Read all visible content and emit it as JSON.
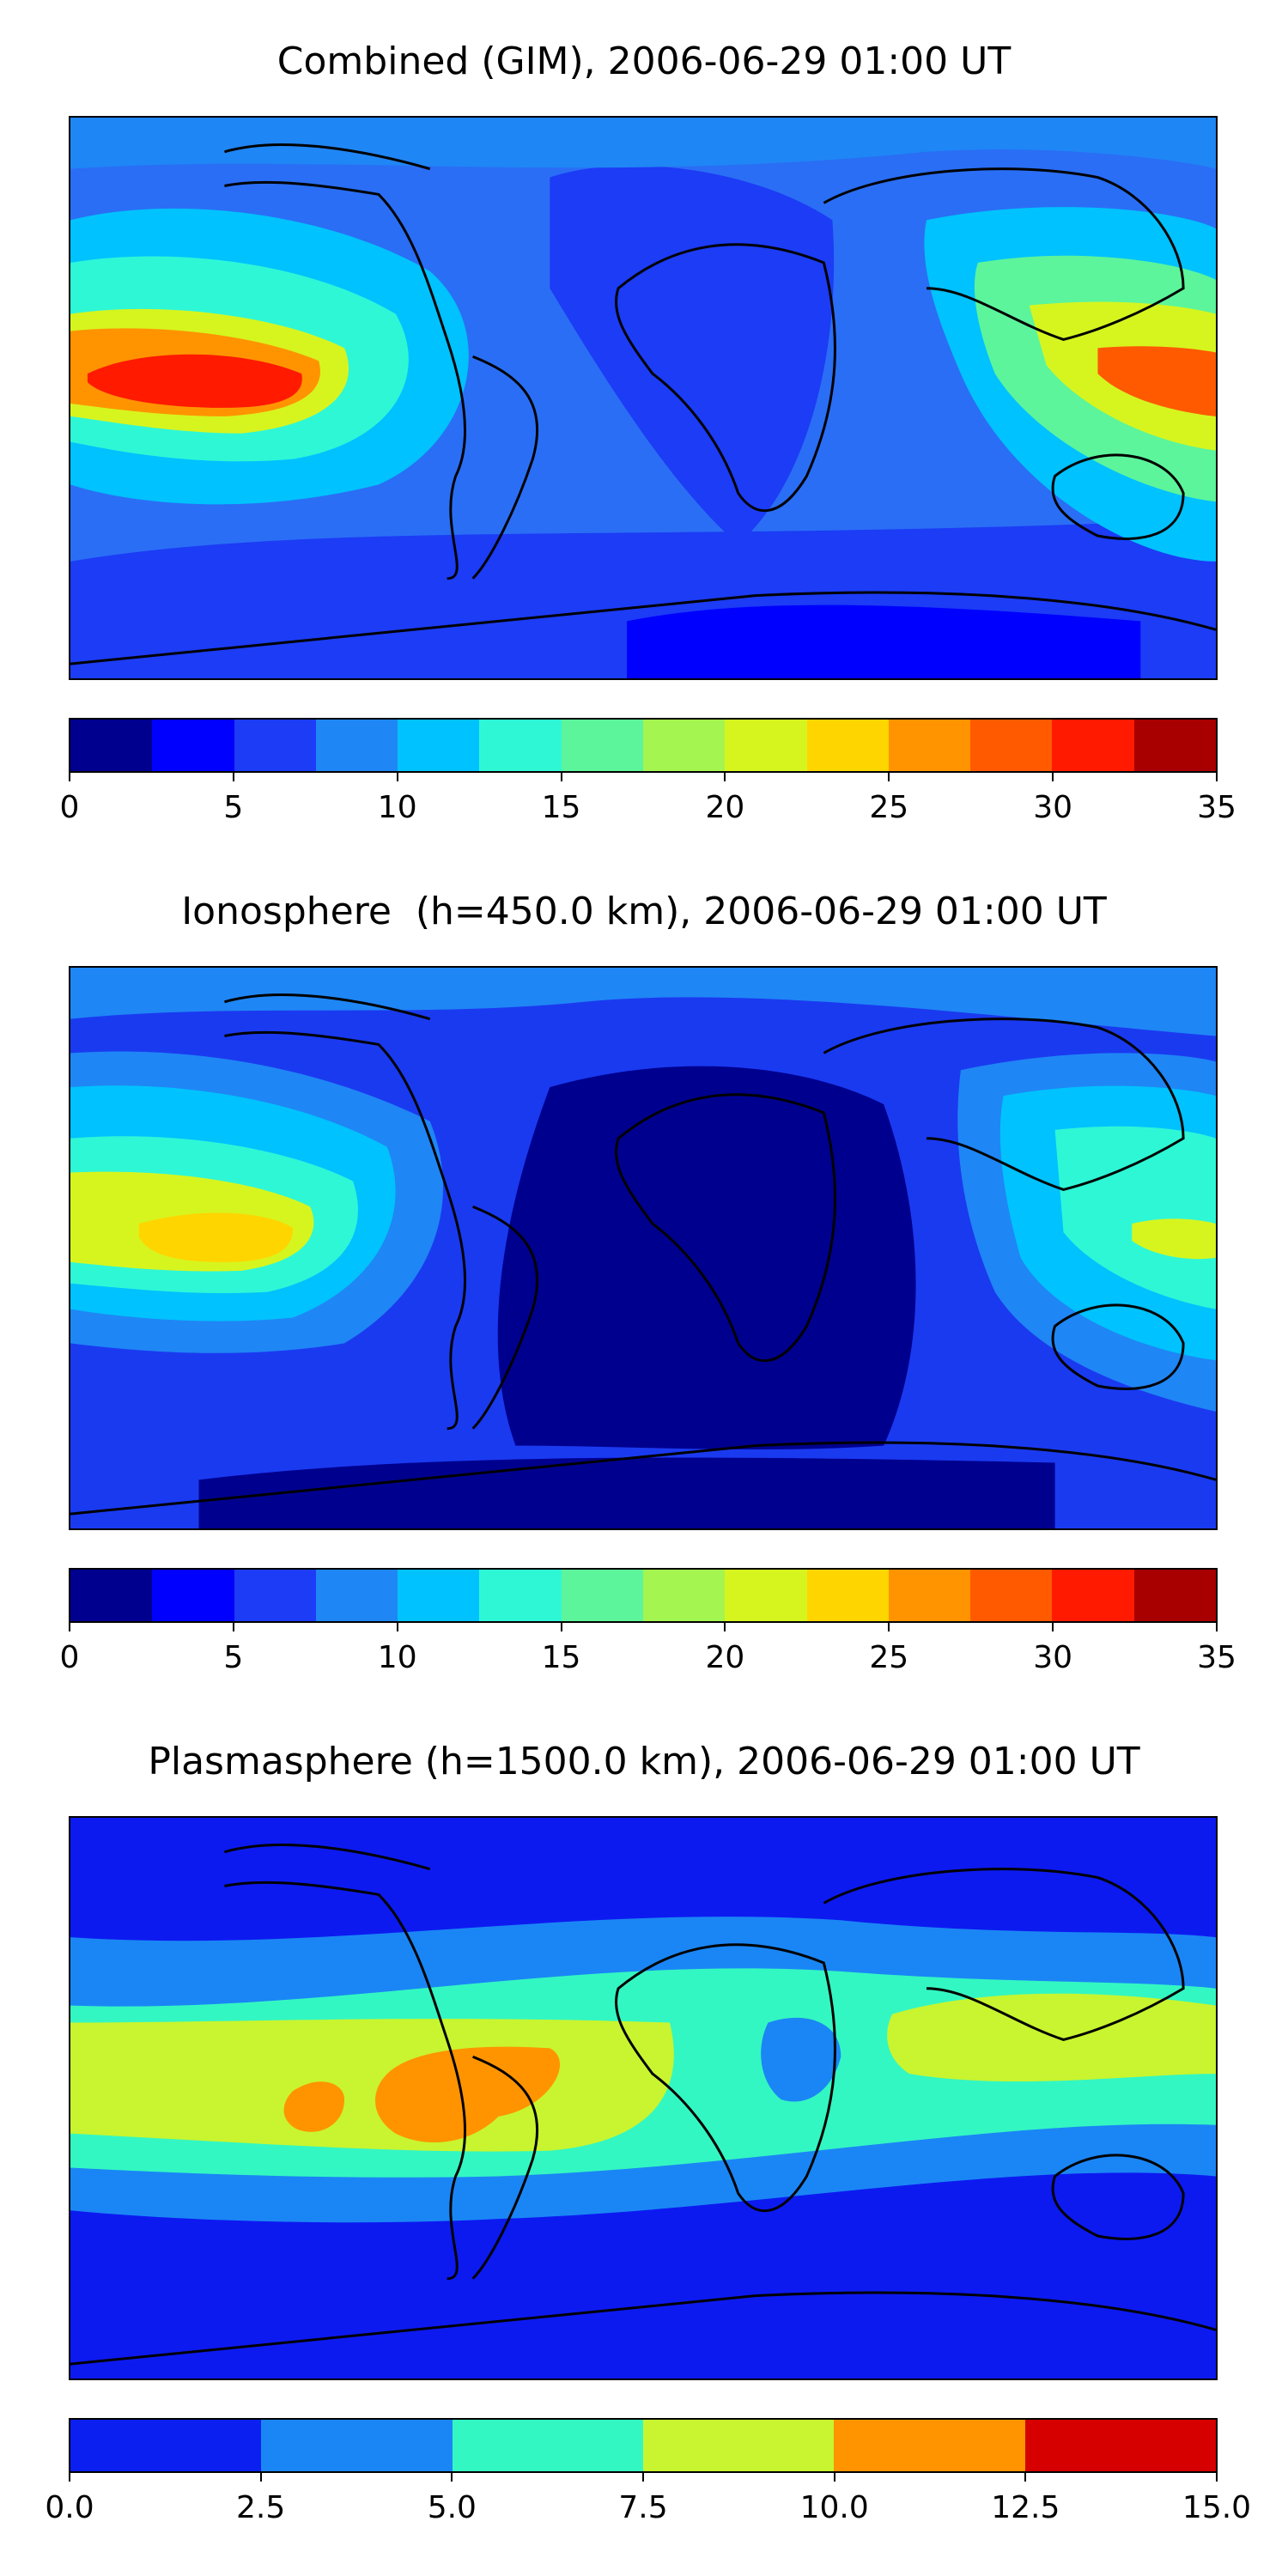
{
  "figure": [
    {
      "title": "Combined (GIM), 2006-06-29 01:00 UT",
      "map_background": "#2a6ef5",
      "colorbar": {
        "colors": [
          "#00008f",
          "#0000ff",
          "#1c3cf5",
          "#1f86f5",
          "#00c2ff",
          "#2ef7d6",
          "#5cf59b",
          "#a4f54f",
          "#d6f51f",
          "#ffd500",
          "#ff9400",
          "#ff5a00",
          "#ff1a00",
          "#a80000"
        ],
        "ticks": [
          "0",
          "5",
          "10",
          "15",
          "20",
          "25",
          "30",
          "35"
        ],
        "range": [
          0,
          35
        ]
      }
    },
    {
      "title": "Ionosphere  (h=450.0 km), 2006-06-29 01:00 UT",
      "map_background": "#1a3af0",
      "colorbar": {
        "colors": [
          "#00008f",
          "#0000ff",
          "#1c3cf5",
          "#1f86f5",
          "#00c2ff",
          "#2ef7d6",
          "#5cf59b",
          "#a4f54f",
          "#d6f51f",
          "#ffd500",
          "#ff9400",
          "#ff5a00",
          "#ff1a00",
          "#a80000"
        ],
        "ticks": [
          "0",
          "5",
          "10",
          "15",
          "20",
          "25",
          "30",
          "35"
        ],
        "range": [
          0,
          35
        ]
      }
    },
    {
      "title": "Plasmasphere (h=1500.0 km), 2006-06-29 01:00 UT",
      "map_background": "#0c1af0",
      "colorbar": {
        "colors": [
          "#0a1ff0",
          "#1a86f5",
          "#33f7c2",
          "#c8f52f",
          "#ff9400",
          "#d60000"
        ],
        "ticks": [
          "0.0",
          "2.5",
          "5.0",
          "7.5",
          "10.0",
          "12.5",
          "15.0"
        ],
        "range": [
          0,
          15
        ]
      }
    }
  ]
}
